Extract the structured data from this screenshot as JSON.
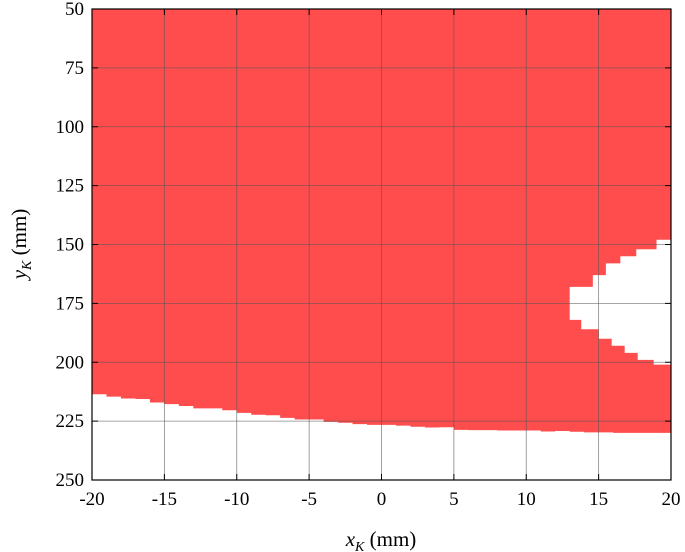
{
  "chart_data": {
    "type": "area",
    "region_color": "#ff4c4c",
    "background_color": "#ffffff",
    "grid": true,
    "grid_color": "#555555",
    "xlim": [
      -20,
      20
    ],
    "ylim": [
      50,
      250
    ],
    "y_reversed": true,
    "xticks": [
      "-20",
      "-15",
      "-10",
      "-5",
      "0",
      "5",
      "10",
      "15",
      "20"
    ],
    "yticks": [
      "50",
      "75",
      "100",
      "125",
      "150",
      "175",
      "200",
      "225",
      "250"
    ],
    "xlabel": {
      "var": "x",
      "sub": "K",
      "unit": " (mm)"
    },
    "ylabel": {
      "var": "y",
      "sub": "K",
      "unit": " (mm)"
    },
    "lower_boundary": {
      "x": [
        -20,
        -19,
        -18,
        -17,
        -16,
        -15,
        -14,
        -13,
        -12,
        -11,
        -10,
        -9,
        -8,
        -7,
        -6,
        -5,
        -4,
        -3,
        -2,
        -1,
        0,
        1,
        2,
        3,
        4,
        5,
        6,
        7,
        8,
        9,
        10,
        11,
        12,
        13,
        14,
        15,
        16,
        17,
        18,
        19,
        20
      ],
      "y": [
        213.6,
        214.6,
        215.4,
        215.6,
        217.1,
        217.8,
        218.6,
        219.6,
        219.6,
        220.4,
        221.5,
        222.3,
        222.5,
        223.6,
        224.3,
        224.3,
        225.3,
        225.7,
        226.3,
        226.6,
        226.6,
        226.9,
        227.4,
        227.7,
        227.6,
        228.7,
        228.8,
        228.8,
        229.0,
        229.0,
        229.0,
        229.4,
        229.2,
        229.5,
        229.8,
        229.8,
        230.0,
        230.0,
        230.0,
        230.0,
        230.0
      ]
    },
    "hole": {
      "x_left": 13,
      "right_edge": [
        {
          "y": [
            144,
            148
          ],
          "x": 20
        },
        {
          "y": [
            148,
            152
          ],
          "x": 19.0
        },
        {
          "y": [
            152,
            155
          ],
          "x": 17.6
        },
        {
          "y": [
            155,
            158
          ],
          "x": 16.5
        },
        {
          "y": [
            158,
            163
          ],
          "x": 15.5
        },
        {
          "y": [
            163,
            168
          ],
          "x": 14.6
        },
        {
          "y": [
            168,
            182
          ],
          "x": 13.0
        },
        {
          "y": [
            182,
            186
          ],
          "x": 13.8
        },
        {
          "y": [
            186,
            190
          ],
          "x": 15.0
        },
        {
          "y": [
            190,
            193
          ],
          "x": 15.9
        },
        {
          "y": [
            193,
            196
          ],
          "x": 16.8
        },
        {
          "y": [
            196,
            199
          ],
          "x": 17.7
        },
        {
          "y": [
            199,
            201
          ],
          "x": 18.8
        },
        {
          "y": [
            201,
            203
          ],
          "x": 20
        }
      ]
    }
  }
}
